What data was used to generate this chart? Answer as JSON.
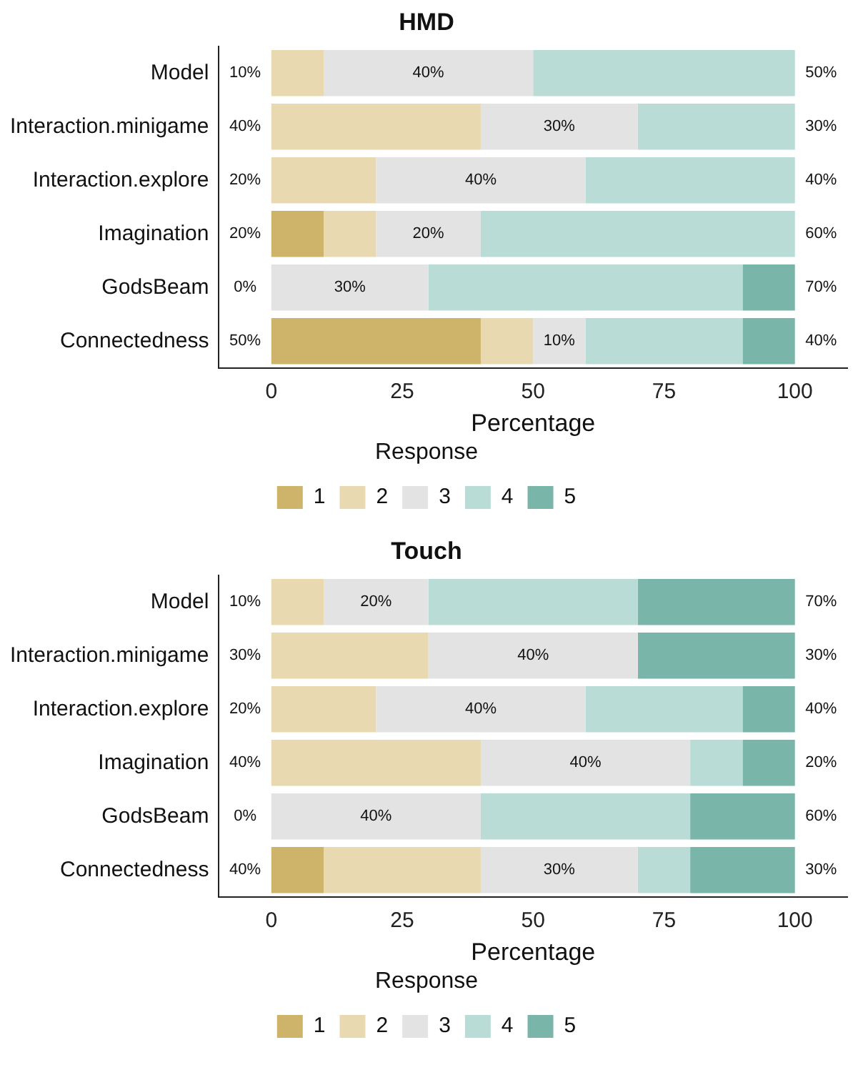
{
  "chart_data": [
    {
      "type": "bar",
      "title": "HMD",
      "orientation": "horizontal",
      "stacked": true,
      "categories": [
        "Model",
        "Interaction.minigame",
        "Interaction.explore",
        "Imagination",
        "GodsBeam",
        "Connectedness"
      ],
      "xlabel": "Percentage",
      "xlim": [
        -10,
        110
      ],
      "xticks": [
        0,
        25,
        50,
        75,
        100
      ],
      "grid": false,
      "legend": "bottom",
      "legend_title": "Response",
      "series": [
        {
          "name": "1",
          "color": "#cdb46a",
          "values": [
            0,
            0,
            0,
            10,
            0,
            40
          ]
        },
        {
          "name": "2",
          "color": "#e8d9b0",
          "values": [
            10,
            40,
            20,
            10,
            0,
            10
          ]
        },
        {
          "name": "3",
          "color": "#e3e3e3",
          "values": [
            40,
            30,
            40,
            20,
            30,
            10
          ],
          "value_labels": [
            "40%",
            "30%",
            "40%",
            "20%",
            "30%",
            "10%"
          ]
        },
        {
          "name": "4",
          "color": "#b9dcd6",
          "values": [
            50,
            30,
            40,
            60,
            60,
            30
          ]
        },
        {
          "name": "5",
          "color": "#7ab5aa",
          "values": [
            0,
            0,
            0,
            0,
            10,
            10
          ]
        }
      ],
      "annotations": [
        "10%",
        "40%",
        "20%",
        "20%",
        "0%",
        "50%",
        "50%",
        "30%",
        "40%",
        "60%",
        "70%",
        "40%"
      ]
    },
    {
      "type": "bar",
      "title": "Touch",
      "orientation": "horizontal",
      "stacked": true,
      "categories": [
        "Model",
        "Interaction.minigame",
        "Interaction.explore",
        "Imagination",
        "GodsBeam",
        "Connectedness"
      ],
      "xlabel": "Percentage",
      "xlim": [
        -10,
        110
      ],
      "xticks": [
        0,
        25,
        50,
        75,
        100
      ],
      "grid": false,
      "legend": "bottom",
      "legend_title": "Response",
      "series": [
        {
          "name": "1",
          "color": "#cdb46a",
          "values": [
            0,
            0,
            0,
            0,
            0,
            10
          ]
        },
        {
          "name": "2",
          "color": "#e8d9b0",
          "values": [
            10,
            30,
            20,
            40,
            0,
            30
          ]
        },
        {
          "name": "3",
          "color": "#e3e3e3",
          "values": [
            20,
            40,
            40,
            40,
            40,
            30
          ],
          "value_labels": [
            "20%",
            "40%",
            "40%",
            "40%",
            "40%",
            "30%"
          ]
        },
        {
          "name": "4",
          "color": "#b9dcd6",
          "values": [
            40,
            0,
            30,
            10,
            40,
            10
          ]
        },
        {
          "name": "5",
          "color": "#7ab5aa",
          "values": [
            30,
            30,
            10,
            10,
            20,
            20
          ]
        }
      ],
      "annotations": [
        "10%",
        "30%",
        "20%",
        "40%",
        "0%",
        "40%",
        "70%",
        "30%",
        "40%",
        "20%",
        "60%",
        "30%"
      ]
    }
  ]
}
